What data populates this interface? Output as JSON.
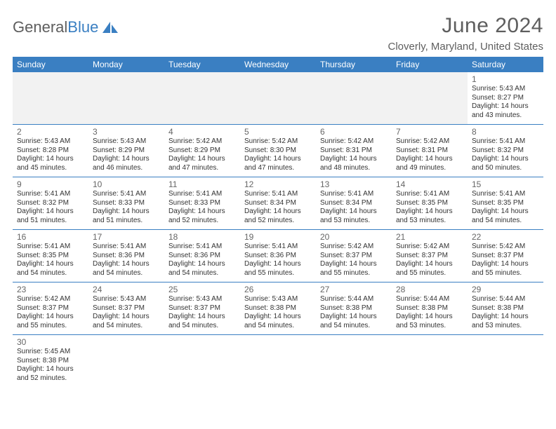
{
  "logo": {
    "text1": "General",
    "text2": "Blue"
  },
  "header": {
    "month_title": "June 2024",
    "location": "Cloverly, Maryland, United States"
  },
  "styling": {
    "header_bg": "#3a7fc2",
    "header_fg": "#ffffff",
    "cell_border": "#3a7fc2",
    "text_color": "#333333",
    "muted_color": "#666666",
    "blank_bg": "#f2f2f2",
    "page_bg": "#ffffff",
    "title_fontsize": 30,
    "location_fontsize": 15,
    "dayhead_fontsize": 12,
    "daynum_fontsize": 12,
    "body_fontsize": 10
  },
  "day_headers": [
    "Sunday",
    "Monday",
    "Tuesday",
    "Wednesday",
    "Thursday",
    "Friday",
    "Saturday"
  ],
  "weeks": [
    [
      null,
      null,
      null,
      null,
      null,
      null,
      {
        "n": "1",
        "sr": "5:43 AM",
        "ss": "8:27 PM",
        "dl": "14 hours and 43 minutes."
      }
    ],
    [
      {
        "n": "2",
        "sr": "5:43 AM",
        "ss": "8:28 PM",
        "dl": "14 hours and 45 minutes."
      },
      {
        "n": "3",
        "sr": "5:43 AM",
        "ss": "8:29 PM",
        "dl": "14 hours and 46 minutes."
      },
      {
        "n": "4",
        "sr": "5:42 AM",
        "ss": "8:29 PM",
        "dl": "14 hours and 47 minutes."
      },
      {
        "n": "5",
        "sr": "5:42 AM",
        "ss": "8:30 PM",
        "dl": "14 hours and 47 minutes."
      },
      {
        "n": "6",
        "sr": "5:42 AM",
        "ss": "8:31 PM",
        "dl": "14 hours and 48 minutes."
      },
      {
        "n": "7",
        "sr": "5:42 AM",
        "ss": "8:31 PM",
        "dl": "14 hours and 49 minutes."
      },
      {
        "n": "8",
        "sr": "5:41 AM",
        "ss": "8:32 PM",
        "dl": "14 hours and 50 minutes."
      }
    ],
    [
      {
        "n": "9",
        "sr": "5:41 AM",
        "ss": "8:32 PM",
        "dl": "14 hours and 51 minutes."
      },
      {
        "n": "10",
        "sr": "5:41 AM",
        "ss": "8:33 PM",
        "dl": "14 hours and 51 minutes."
      },
      {
        "n": "11",
        "sr": "5:41 AM",
        "ss": "8:33 PM",
        "dl": "14 hours and 52 minutes."
      },
      {
        "n": "12",
        "sr": "5:41 AM",
        "ss": "8:34 PM",
        "dl": "14 hours and 52 minutes."
      },
      {
        "n": "13",
        "sr": "5:41 AM",
        "ss": "8:34 PM",
        "dl": "14 hours and 53 minutes."
      },
      {
        "n": "14",
        "sr": "5:41 AM",
        "ss": "8:35 PM",
        "dl": "14 hours and 53 minutes."
      },
      {
        "n": "15",
        "sr": "5:41 AM",
        "ss": "8:35 PM",
        "dl": "14 hours and 54 minutes."
      }
    ],
    [
      {
        "n": "16",
        "sr": "5:41 AM",
        "ss": "8:35 PM",
        "dl": "14 hours and 54 minutes."
      },
      {
        "n": "17",
        "sr": "5:41 AM",
        "ss": "8:36 PM",
        "dl": "14 hours and 54 minutes."
      },
      {
        "n": "18",
        "sr": "5:41 AM",
        "ss": "8:36 PM",
        "dl": "14 hours and 54 minutes."
      },
      {
        "n": "19",
        "sr": "5:41 AM",
        "ss": "8:36 PM",
        "dl": "14 hours and 55 minutes."
      },
      {
        "n": "20",
        "sr": "5:42 AM",
        "ss": "8:37 PM",
        "dl": "14 hours and 55 minutes."
      },
      {
        "n": "21",
        "sr": "5:42 AM",
        "ss": "8:37 PM",
        "dl": "14 hours and 55 minutes."
      },
      {
        "n": "22",
        "sr": "5:42 AM",
        "ss": "8:37 PM",
        "dl": "14 hours and 55 minutes."
      }
    ],
    [
      {
        "n": "23",
        "sr": "5:42 AM",
        "ss": "8:37 PM",
        "dl": "14 hours and 55 minutes."
      },
      {
        "n": "24",
        "sr": "5:43 AM",
        "ss": "8:37 PM",
        "dl": "14 hours and 54 minutes."
      },
      {
        "n": "25",
        "sr": "5:43 AM",
        "ss": "8:37 PM",
        "dl": "14 hours and 54 minutes."
      },
      {
        "n": "26",
        "sr": "5:43 AM",
        "ss": "8:38 PM",
        "dl": "14 hours and 54 minutes."
      },
      {
        "n": "27",
        "sr": "5:44 AM",
        "ss": "8:38 PM",
        "dl": "14 hours and 54 minutes."
      },
      {
        "n": "28",
        "sr": "5:44 AM",
        "ss": "8:38 PM",
        "dl": "14 hours and 53 minutes."
      },
      {
        "n": "29",
        "sr": "5:44 AM",
        "ss": "8:38 PM",
        "dl": "14 hours and 53 minutes."
      }
    ],
    [
      {
        "n": "30",
        "sr": "5:45 AM",
        "ss": "8:38 PM",
        "dl": "14 hours and 52 minutes."
      },
      null,
      null,
      null,
      null,
      null,
      null
    ]
  ],
  "labels": {
    "sunrise": "Sunrise:",
    "sunset": "Sunset:",
    "daylight": "Daylight:"
  }
}
